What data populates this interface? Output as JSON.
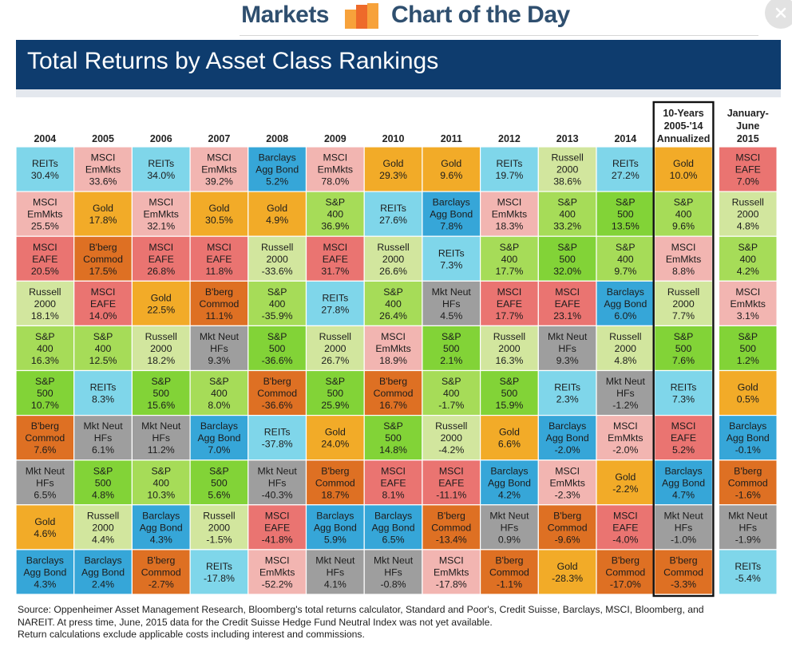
{
  "header": {
    "brand_left": "Markets",
    "brand_right": "Chart of the Day",
    "title": "Total Returns by Asset Class Rankings"
  },
  "icons": {
    "logo": "chart-bars-logo",
    "close": "close-icon"
  },
  "colors": {
    "REITs": "#7fd6ea",
    "MSCI EmMkts": "#f2b5b1",
    "MSCI EAFE": "#ea7471",
    "Russell 2000": "#d2e69e",
    "S&P 400": "#a6dc58",
    "S&P 500": "#82d337",
    "Gold": "#f2ab28",
    "B'berg Commod": "#de7023",
    "Mkt Neut HFs": "#9e9e9e",
    "Barclays Agg Bond": "#36a6d8",
    "banner": "#0e3c6e",
    "masthead_text": "#2f4f6f"
  },
  "chart_data": {
    "type": "table",
    "title": "Total Returns by Asset Class Rankings",
    "columns": [
      "2004",
      "2005",
      "2006",
      "2007",
      "2008",
      "2009",
      "2010",
      "2011",
      "2012",
      "2013",
      "2014",
      "10-Years 2005-'14 Annualized",
      "January-June 2015"
    ],
    "column_header_lines": [
      [
        "2004"
      ],
      [
        "2005"
      ],
      [
        "2006"
      ],
      [
        "2007"
      ],
      [
        "2008"
      ],
      [
        "2009"
      ],
      [
        "2010"
      ],
      [
        "2011"
      ],
      [
        "2012"
      ],
      [
        "2013"
      ],
      [
        "2014"
      ],
      [
        "10-Years",
        "2005-'14",
        "Annualized"
      ],
      [
        "January-",
        "June",
        "2015"
      ]
    ],
    "highlighted_column": "10-Years 2005-'14 Annualized",
    "asset_labels": {
      "REITs": [
        "REITs"
      ],
      "MSCI EmMkts": [
        "MSCI",
        "EmMkts"
      ],
      "MSCI EAFE": [
        "MSCI",
        "EAFE"
      ],
      "Russell 2000": [
        "Russell",
        "2000"
      ],
      "S&P 400": [
        "S&P",
        "400"
      ],
      "S&P 500": [
        "S&P",
        "500"
      ],
      "Gold": [
        "Gold"
      ],
      "B'berg Commod": [
        "B'berg",
        "Commod"
      ],
      "Mkt Neut HFs": [
        "Mkt Neut",
        "HFs"
      ],
      "Barclays Agg Bond": [
        "Barclays",
        "Agg Bond"
      ]
    },
    "rankings": [
      [
        [
          "REITs",
          "30.4%"
        ],
        [
          "MSCI EmMkts",
          "25.5%"
        ],
        [
          "MSCI EAFE",
          "20.5%"
        ],
        [
          "Russell 2000",
          "18.1%"
        ],
        [
          "S&P 400",
          "16.3%"
        ],
        [
          "S&P 500",
          "10.7%"
        ],
        [
          "B'berg Commod",
          "7.6%"
        ],
        [
          "Mkt Neut HFs",
          "6.5%"
        ],
        [
          "Gold",
          "4.6%"
        ],
        [
          "Barclays Agg Bond",
          "4.3%"
        ]
      ],
      [
        [
          "MSCI EmMkts",
          "33.6%"
        ],
        [
          "Gold",
          "17.8%"
        ],
        [
          "B'berg Commod",
          "17.5%"
        ],
        [
          "MSCI EAFE",
          "14.0%"
        ],
        [
          "S&P 400",
          "12.5%"
        ],
        [
          "REITs",
          "8.3%"
        ],
        [
          "Mkt Neut HFs",
          "6.1%"
        ],
        [
          "S&P 500",
          "4.8%"
        ],
        [
          "Russell 2000",
          "4.4%"
        ],
        [
          "Barclays Agg Bond",
          "2.4%"
        ]
      ],
      [
        [
          "REITs",
          "34.0%"
        ],
        [
          "MSCI EmMkts",
          "32.1%"
        ],
        [
          "MSCI EAFE",
          "26.8%"
        ],
        [
          "Gold",
          "22.5%"
        ],
        [
          "Russell 2000",
          "18.2%"
        ],
        [
          "S&P 500",
          "15.6%"
        ],
        [
          "Mkt Neut HFs",
          "11.2%"
        ],
        [
          "S&P 400",
          "10.3%"
        ],
        [
          "Barclays Agg Bond",
          "4.3%"
        ],
        [
          "B'berg Commod",
          "-2.7%"
        ]
      ],
      [
        [
          "MSCI EmMkts",
          "39.2%"
        ],
        [
          "Gold",
          "30.5%"
        ],
        [
          "MSCI EAFE",
          "11.8%"
        ],
        [
          "B'berg Commod",
          "11.1%"
        ],
        [
          "Mkt Neut HFs",
          "9.3%"
        ],
        [
          "S&P 400",
          "8.0%"
        ],
        [
          "Barclays Agg Bond",
          "7.0%"
        ],
        [
          "S&P 500",
          "5.6%"
        ],
        [
          "Russell 2000",
          "-1.5%"
        ],
        [
          "REITs",
          "-17.8%"
        ]
      ],
      [
        [
          "Barclays Agg Bond",
          "5.2%"
        ],
        [
          "Gold",
          "4.9%"
        ],
        [
          "Russell 2000",
          "-33.6%"
        ],
        [
          "S&P 400",
          "-35.9%"
        ],
        [
          "S&P 500",
          "-36.6%"
        ],
        [
          "B'berg Commod",
          "-36.6%"
        ],
        [
          "REITs",
          "-37.8%"
        ],
        [
          "Mkt Neut HFs",
          "-40.3%"
        ],
        [
          "MSCI EAFE",
          "-41.8%"
        ],
        [
          "MSCI EmMkts",
          "-52.2%"
        ]
      ],
      [
        [
          "MSCI EmMkts",
          "78.0%"
        ],
        [
          "S&P 400",
          "36.9%"
        ],
        [
          "MSCI EAFE",
          "31.7%"
        ],
        [
          "REITs",
          "27.8%"
        ],
        [
          "Russell 2000",
          "26.7%"
        ],
        [
          "S&P 500",
          "25.9%"
        ],
        [
          "Gold",
          "24.0%"
        ],
        [
          "B'berg Commod",
          "18.7%"
        ],
        [
          "Barclays Agg Bond",
          "5.9%"
        ],
        [
          "Mkt Neut HFs",
          "4.1%"
        ]
      ],
      [
        [
          "Gold",
          "29.3%"
        ],
        [
          "REITs",
          "27.6%"
        ],
        [
          "Russell 2000",
          "26.6%"
        ],
        [
          "S&P 400",
          "26.4%"
        ],
        [
          "MSCI EmMkts",
          "18.9%"
        ],
        [
          "B'berg Commod",
          "16.7%"
        ],
        [
          "S&P 500",
          "14.8%"
        ],
        [
          "MSCI EAFE",
          "8.1%"
        ],
        [
          "Barclays Agg Bond",
          "6.5%"
        ],
        [
          "Mkt Neut HFs",
          "-0.8%"
        ]
      ],
      [
        [
          "Gold",
          "9.6%"
        ],
        [
          "Barclays Agg Bond",
          "7.8%"
        ],
        [
          "REITs",
          "7.3%"
        ],
        [
          "Mkt Neut HFs",
          "4.5%"
        ],
        [
          "S&P 500",
          "2.1%"
        ],
        [
          "S&P 400",
          "-1.7%"
        ],
        [
          "Russell 2000",
          "-4.2%"
        ],
        [
          "MSCI EAFE",
          "-11.1%"
        ],
        [
          "B'berg Commod",
          "-13.4%"
        ],
        [
          "MSCI EmMkts",
          "-17.8%"
        ]
      ],
      [
        [
          "REITs",
          "19.7%"
        ],
        [
          "MSCI EmMkts",
          "18.3%"
        ],
        [
          "S&P 400",
          "17.7%"
        ],
        [
          "MSCI EAFE",
          "17.7%"
        ],
        [
          "Russell 2000",
          "16.3%"
        ],
        [
          "S&P 500",
          "15.9%"
        ],
        [
          "Gold",
          "6.6%"
        ],
        [
          "Barclays Agg Bond",
          "4.2%"
        ],
        [
          "Mkt Neut HFs",
          "0.9%"
        ],
        [
          "B'berg Commod",
          "-1.1%"
        ]
      ],
      [
        [
          "Russell 2000",
          "38.6%"
        ],
        [
          "S&P 400",
          "33.2%"
        ],
        [
          "S&P 500",
          "32.0%"
        ],
        [
          "MSCI EAFE",
          "23.1%"
        ],
        [
          "Mkt Neut HFs",
          "9.3%"
        ],
        [
          "REITs",
          "2.3%"
        ],
        [
          "Barclays Agg Bond",
          "-2.0%"
        ],
        [
          "MSCI EmMkts",
          "-2.3%"
        ],
        [
          "B'berg Commod",
          "-9.6%"
        ],
        [
          "Gold",
          "-28.3%"
        ]
      ],
      [
        [
          "REITs",
          "27.2%"
        ],
        [
          "S&P 500",
          "13.5%"
        ],
        [
          "S&P 400",
          "9.7%"
        ],
        [
          "Barclays Agg Bond",
          "6.0%"
        ],
        [
          "Russell 2000",
          "4.8%"
        ],
        [
          "Mkt Neut HFs",
          "-1.2%"
        ],
        [
          "MSCI EmMkts",
          "-2.0%"
        ],
        [
          "Gold",
          "-2.2%"
        ],
        [
          "MSCI EAFE",
          "-4.0%"
        ],
        [
          "B'berg Commod",
          "-17.0%"
        ]
      ],
      [
        [
          "Gold",
          "10.0%"
        ],
        [
          "S&P 400",
          "9.6%"
        ],
        [
          "MSCI EmMkts",
          "8.8%"
        ],
        [
          "Russell 2000",
          "7.7%"
        ],
        [
          "S&P 500",
          "7.6%"
        ],
        [
          "REITs",
          "7.3%"
        ],
        [
          "MSCI EAFE",
          "5.2%"
        ],
        [
          "Barclays Agg Bond",
          "4.7%"
        ],
        [
          "Mkt Neut HFs",
          "-1.0%"
        ],
        [
          "B'berg Commod",
          "-3.3%"
        ]
      ],
      [
        [
          "MSCI EAFE",
          "7.0%"
        ],
        [
          "Russell 2000",
          "4.8%"
        ],
        [
          "S&P 400",
          "4.2%"
        ],
        [
          "MSCI EmMkts",
          "3.1%"
        ],
        [
          "S&P 500",
          "1.2%"
        ],
        [
          "Gold",
          "0.5%"
        ],
        [
          "Barclays Agg Bond",
          "-0.1%"
        ],
        [
          "B'berg Commod",
          "-1.6%"
        ],
        [
          "Mkt Neut HFs",
          "-1.9%"
        ],
        [
          "REITs",
          "-5.4%"
        ]
      ]
    ]
  },
  "source": {
    "line1": "Source: Oppenheimer Asset Management Research, Bloomberg's total returns calculator, Standard and Poor's, Credit Suisse, Barclays, MSCI, Bloomberg, and",
    "line2": "NAREIT.  At press time, June, 2015 data for the Credit Suisse Hedge Fund Neutral Index was not yet available.",
    "line3": "Return calculations exclude applicable costs including interest and commissions."
  }
}
